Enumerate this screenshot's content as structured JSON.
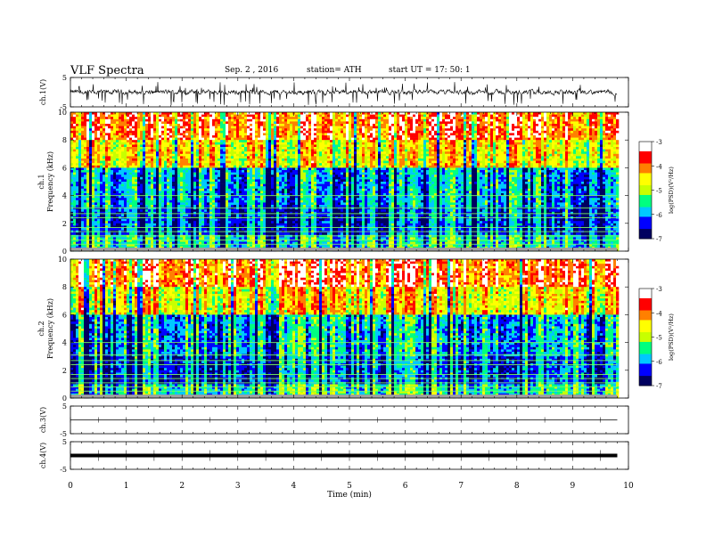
{
  "header": {
    "title": "VLF Spectra",
    "date": "Sep. 2  , 2016",
    "station": "station= ATH",
    "start": "start  UT  =    17: 50: 1"
  },
  "chart_data": [
    {
      "type": "line",
      "panel": "ch1-waveform",
      "ylabel": "ch.1(V)",
      "ylim": [
        -5,
        5
      ],
      "yticks": [
        "5",
        "-5"
      ],
      "x_range_min": [
        0,
        9.8
      ],
      "series": [
        {
          "values_description_level": 0,
          "spike_min": -4.5,
          "spike_max": 3.5
        }
      ],
      "color": "#000000"
    },
    {
      "type": "heatmap",
      "panel": "ch1-spectrogram",
      "ylabel": "ch.1\nFrequency  (kHz)",
      "ylabel_lines": [
        "ch.1",
        "Frequency  (kHz)"
      ],
      "ylim": [
        0,
        10
      ],
      "yticks": [
        "0",
        "2",
        "4",
        "6",
        "8",
        "10"
      ],
      "x_range_min": [
        0,
        9.8
      ],
      "colorbar": {
        "label": "log(PSD)(V²/Hz)",
        "range": [
          -7,
          -3
        ],
        "ticks": [
          "-3",
          "-4",
          "-5",
          "-6",
          "-7"
        ],
        "colors": [
          "#000060",
          "#0000ff",
          "#00c8ff",
          "#00ff80",
          "#c8ff00",
          "#ffff00",
          "#ff8000",
          "#ff0000",
          "#ffffff"
        ]
      }
    },
    {
      "type": "heatmap",
      "panel": "ch2-spectrogram",
      "ylabel": "ch.2\nFrequency  (kHz)",
      "ylabel_lines": [
        "ch.2",
        "Frequency  (kHz)"
      ],
      "ylim": [
        0,
        10
      ],
      "yticks": [
        "0",
        "2",
        "4",
        "6",
        "8",
        "10"
      ],
      "x_range_min": [
        0,
        9.8
      ],
      "colorbar": {
        "label": "log(PSD)(V²/Hz)",
        "range": [
          -7,
          -3
        ],
        "ticks": [
          "-3",
          "-4",
          "-5",
          "-6",
          "-7"
        ],
        "colors": [
          "#000060",
          "#0000ff",
          "#00c8ff",
          "#00ff80",
          "#c8ff00",
          "#ffff00",
          "#ff8000",
          "#ff0000",
          "#ffffff"
        ]
      }
    },
    {
      "type": "line",
      "panel": "ch3-waveform",
      "ylabel": "ch.3(V)",
      "ylim": [
        -5,
        5
      ],
      "yticks": [
        "5",
        "-5"
      ],
      "x_range_min": [
        0,
        9.8
      ],
      "series": [
        {
          "level": 0
        }
      ],
      "color": "#000000"
    },
    {
      "type": "line",
      "panel": "ch4-waveform",
      "ylabel": "ch.4(V)",
      "ylim": [
        -5,
        5
      ],
      "yticks": [
        "5",
        "-5"
      ],
      "x_range_min": [
        0,
        9.8
      ],
      "series": [
        {
          "level": 0
        }
      ],
      "color": "#000000"
    }
  ],
  "xaxis": {
    "label": "Time  (min)",
    "ticks": [
      "0",
      "1",
      "2",
      "3",
      "4",
      "5",
      "6",
      "7",
      "8",
      "9",
      "10"
    ],
    "xlim": [
      0,
      10
    ]
  }
}
